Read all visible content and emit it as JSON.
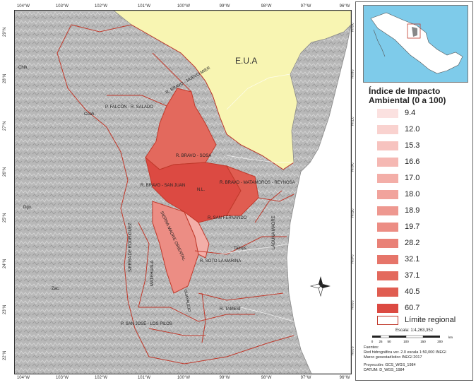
{
  "map": {
    "ticks_top": [
      "104°W",
      "103°W",
      "102°W",
      "101°W",
      "100°W",
      "99°W",
      "98°W",
      "97°W",
      "96°W"
    ],
    "ticks_bottom": [
      "104°W",
      "103°W",
      "102°W",
      "101°W",
      "100°W",
      "99°W",
      "98°W",
      "97°W",
      "96°W"
    ],
    "ticks_left": [
      "29°N",
      "28°N",
      "27°N",
      "26°N",
      "25°N",
      "24°N",
      "23°N",
      "22°N"
    ],
    "ticks_right": [
      "29°N",
      "28°N",
      "27°N",
      "26°N",
      "25°N",
      "24°N",
      "23°N",
      "22°N"
    ],
    "country_label": "E.U.A",
    "region_labels": {
      "bravo_nuevo_mier": "R. BRAVO - NUEVO MIER",
      "falcon_salado": "P. FALCÓN - R. SALADO",
      "bravo_sosa": "R. BRAVO - SOSA",
      "bravo_san_juan": "R. BRAVO - SAN JUAN",
      "bravo_matamoros": "R. BRAVO - MATAMOROS - REYNOSA",
      "san_fernando": "R. SAN FERNANDO",
      "laguna_madre": "LAGUNA MADRE",
      "sierra_madre": "SIERRA MADRE ORIENTAL",
      "sierra_rodriguez": "SIERRA DE RODRIGUEZ",
      "matehuala": "MATEHUALA",
      "soto_la_marina": "R. SOTO LA MARINA",
      "tamesi": "R. TAMESÍ",
      "guayalejo": "GUAYALEJO",
      "san_jose": "P. SAN JOSÉ - LOS PILOS"
    },
    "state_labels": {
      "nl": "N.L.",
      "coah": "Coah.",
      "tamps": "Tamps.",
      "chih": "Chih.",
      "dgo": "Dgo.",
      "zac": "Zac."
    },
    "region_color": "#c0392b"
  },
  "legend": {
    "title": "Índice de Impacto Ambiental (0 a 100)",
    "items": [
      {
        "label": "9.4",
        "color": "#fbe1e0"
      },
      {
        "label": "12.0",
        "color": "#f9d2cf"
      },
      {
        "label": "15.3",
        "color": "#f7c3bf"
      },
      {
        "label": "16.6",
        "color": "#f5b8b3"
      },
      {
        "label": "17.0",
        "color": "#f3aea8"
      },
      {
        "label": "18.0",
        "color": "#f1a39c"
      },
      {
        "label": "18.9",
        "color": "#ee9890"
      },
      {
        "label": "19.7",
        "color": "#ec8d84"
      },
      {
        "label": "28.2",
        "color": "#e98177"
      },
      {
        "label": "32.1",
        "color": "#e6756a"
      },
      {
        "label": "37.1",
        "color": "#e3695d"
      },
      {
        "label": "40.5",
        "color": "#e05d51"
      },
      {
        "label": "60.7",
        "color": "#dc4a42"
      }
    ],
    "boundary_label": "Límite regional"
  },
  "scale": {
    "text": "Escala: 1:4,263,352",
    "ticks": [
      "0",
      "25",
      "50",
      "100",
      "150",
      "200"
    ],
    "unit": "km"
  },
  "sources": {
    "lines": [
      "Fuentes:",
      "Red hidrográfica ver. 2.0 escala 1:50,000 INEGI",
      "Marco geoestadístico INEGI 2017",
      "",
      "Proyección: GCS_WGS_1984",
      "DATUM: D_WGS_1984"
    ]
  }
}
